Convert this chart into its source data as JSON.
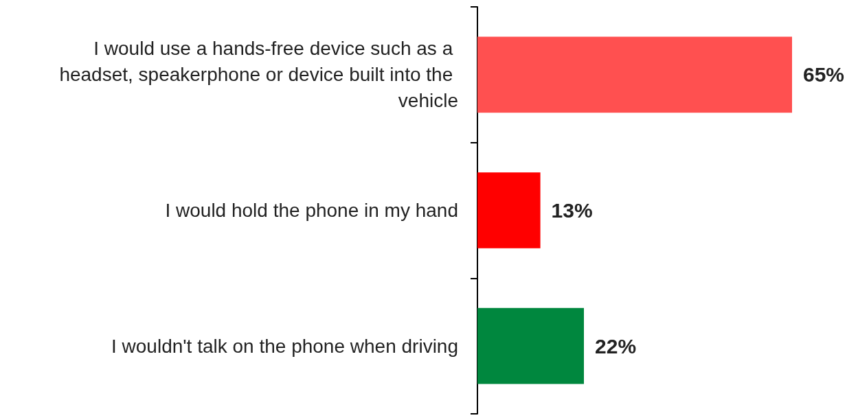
{
  "chart_data": {
    "type": "bar",
    "orientation": "horizontal",
    "categories": [
      "I would use a hands-free device such as a headset, speakerphone or device built into the vehicle",
      "I would hold the phone in my hand",
      "I wouldn't talk on the phone when driving"
    ],
    "values": [
      65,
      13,
      22
    ],
    "colors": [
      "#ff5050",
      "#ff0000",
      "#00873e"
    ],
    "value_labels": [
      "65%",
      "13%",
      "22%"
    ]
  }
}
